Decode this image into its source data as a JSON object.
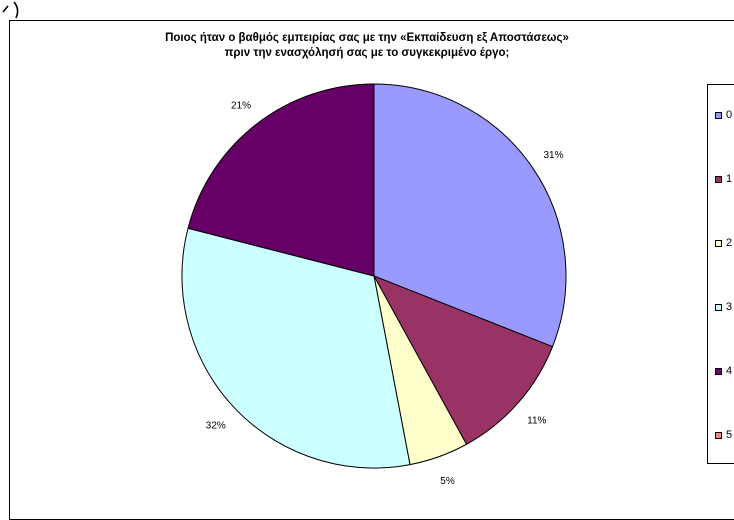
{
  "chart_data": {
    "type": "pie",
    "title_line1": "Ποιος ήταν ο βαθμός εμπειρίας σας με την «Εκπαίδευση εξ Αποστάσεως»",
    "title_line2": "πριν την ενασχόλησή σας με το συγκεκριμένο έργο;",
    "categories": [
      "0",
      "1",
      "2",
      "3",
      "4",
      "5"
    ],
    "values": [
      31,
      11,
      5,
      32,
      21,
      0
    ],
    "value_labels": [
      "31%",
      "11%",
      "5%",
      "32%",
      "21%",
      ""
    ],
    "colors": [
      "#9999ff",
      "#993366",
      "#ffffcc",
      "#ccffff",
      "#660066",
      "#ff8080"
    ],
    "legend_position": "right"
  }
}
